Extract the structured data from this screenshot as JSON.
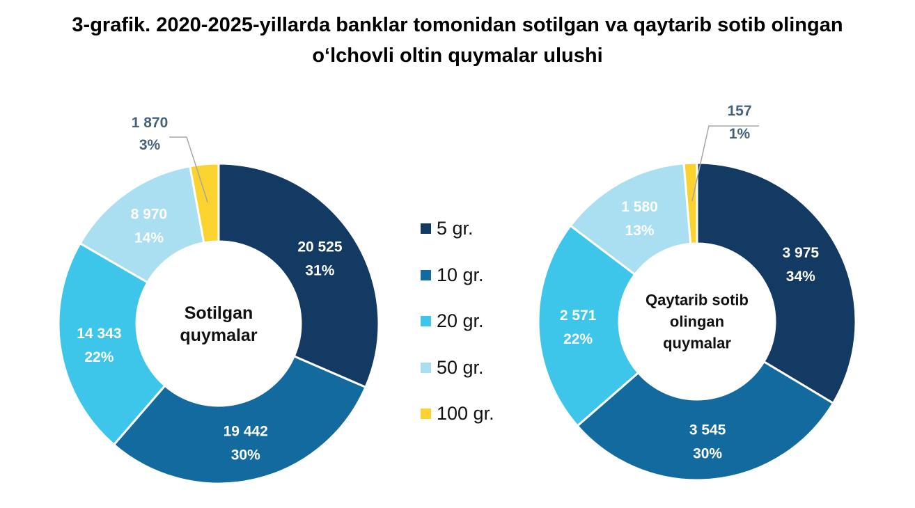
{
  "title": {
    "line1": "3-grafik. 2020-2025-yillarda banklar tomonidan sotilgan va qaytarib sotib olingan",
    "line2": "oʻlchovli oltin quymalar ulushi"
  },
  "colors": {
    "5 gr.": "#123a63",
    "10 gr.": "#126a9e",
    "20 gr.": "#3dc5ea",
    "50 gr.": "#a9dff1",
    "100 gr.": "#fcd32e",
    "outer_label": "#45627a",
    "inner_label": "#ffffff",
    "leader": "#a6a6a6"
  },
  "chart_data": [
    {
      "type": "pie",
      "donut": true,
      "center_label": [
        "Sotilgan",
        "quymalar"
      ],
      "categories": [
        "5 gr.",
        "10 gr.",
        "20 gr.",
        "50 gr.",
        "100 gr."
      ],
      "values": [
        20525,
        19442,
        14343,
        8970,
        1870
      ],
      "value_labels": [
        "20 525",
        "19 442",
        "14 343",
        "8 970",
        "1 870"
      ],
      "percent_labels": [
        "31%",
        "30%",
        "22%",
        "14%",
        "3%"
      ],
      "legend": "center"
    },
    {
      "type": "pie",
      "donut": true,
      "center_label": [
        "Qaytarib sotib",
        "olingan",
        "quymalar"
      ],
      "categories": [
        "5 gr.",
        "10 gr.",
        "20 gr.",
        "50 gr.",
        "100 gr."
      ],
      "values": [
        3975,
        3545,
        2571,
        1580,
        157
      ],
      "value_labels": [
        "3 975",
        "3 545",
        "2 571",
        "1 580",
        "157"
      ],
      "percent_labels": [
        "34%",
        "30%",
        "22%",
        "13%",
        "1%"
      ],
      "legend": "center"
    }
  ],
  "legend": {
    "items": [
      "5 gr.",
      "10 gr.",
      "20 gr.",
      "50 gr.",
      "100 gr."
    ]
  }
}
